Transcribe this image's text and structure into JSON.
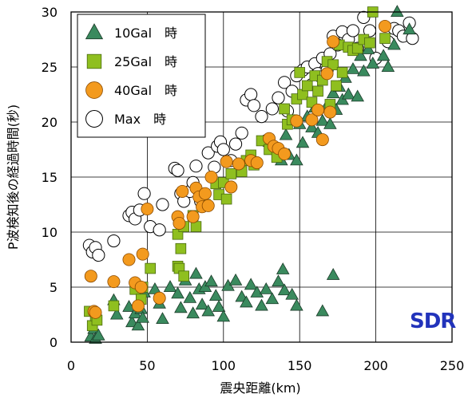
{
  "chart_data": {
    "type": "scatter",
    "xlabel": "震央距離(km)",
    "ylabel": "P波検知後の経過時間(秒)",
    "xlim": [
      0,
      250
    ],
    "ylim": [
      0,
      30
    ],
    "xticks": [
      0,
      50,
      100,
      150,
      200,
      250
    ],
    "yticks": [
      0,
      5,
      10,
      15,
      20,
      25,
      30
    ],
    "grid": true,
    "legend_position": "top-left",
    "watermark": "SDR",
    "series": [
      {
        "name": "10Gal　時",
        "marker": "triangle",
        "color": "#3a8a5e",
        "points": [
          [
            13,
            0.5
          ],
          [
            15,
            1.2
          ],
          [
            16,
            0.3
          ],
          [
            18,
            0.6
          ],
          [
            28,
            3.8
          ],
          [
            30,
            2.5
          ],
          [
            38,
            3.2
          ],
          [
            40,
            1.8
          ],
          [
            42,
            2.6
          ],
          [
            44,
            1.5
          ],
          [
            46,
            3.0
          ],
          [
            47,
            2.2
          ],
          [
            48,
            4.5
          ],
          [
            55,
            4.8
          ],
          [
            58,
            3.5
          ],
          [
            60,
            2.1
          ],
          [
            65,
            5.0
          ],
          [
            70,
            4.4
          ],
          [
            72,
            3.1
          ],
          [
            75,
            5.6
          ],
          [
            78,
            4.0
          ],
          [
            80,
            2.6
          ],
          [
            82,
            6.2
          ],
          [
            84,
            4.8
          ],
          [
            86,
            3.4
          ],
          [
            88,
            5.0
          ],
          [
            90,
            2.8
          ],
          [
            92,
            5.5
          ],
          [
            95,
            4.2
          ],
          [
            97,
            3.2
          ],
          [
            100,
            2.3
          ],
          [
            103,
            5.1
          ],
          [
            108,
            5.6
          ],
          [
            112,
            4.1
          ],
          [
            115,
            3.6
          ],
          [
            118,
            5.2
          ],
          [
            122,
            4.5
          ],
          [
            125,
            3.3
          ],
          [
            128,
            4.8
          ],
          [
            132,
            3.9
          ],
          [
            136,
            5.5
          ],
          [
            139,
            6.6
          ],
          [
            140,
            4.7
          ],
          [
            145,
            4.3
          ],
          [
            148,
            3.3
          ],
          [
            165,
            2.8
          ],
          [
            172,
            6.1
          ],
          [
            138,
            16.5
          ],
          [
            141,
            18.8
          ],
          [
            143,
            17.0
          ],
          [
            148,
            16.5
          ],
          [
            150,
            19.8
          ],
          [
            152,
            18.1
          ],
          [
            155,
            20.5
          ],
          [
            158,
            19.5
          ],
          [
            160,
            21.3
          ],
          [
            162,
            19.0
          ],
          [
            165,
            20.1
          ],
          [
            168,
            21.5
          ],
          [
            170,
            19.8
          ],
          [
            172,
            22.6
          ],
          [
            174,
            21.1
          ],
          [
            176,
            23.2
          ],
          [
            178,
            22.0
          ],
          [
            180,
            24.0
          ],
          [
            182,
            22.5
          ],
          [
            185,
            24.8
          ],
          [
            188,
            22.3
          ],
          [
            190,
            26.0
          ],
          [
            192,
            24.6
          ],
          [
            195,
            26.6
          ],
          [
            198,
            25.3
          ],
          [
            205,
            26.0
          ],
          [
            208,
            25.0
          ],
          [
            212,
            27.0
          ],
          [
            214,
            30.0
          ],
          [
            222,
            28.4
          ]
        ]
      },
      {
        "name": "25Gal　時",
        "marker": "square",
        "color": "#8fbf1f",
        "points": [
          [
            12,
            2.8
          ],
          [
            14,
            1.5
          ],
          [
            16,
            2.4
          ],
          [
            17,
            2.0
          ],
          [
            28,
            3.3
          ],
          [
            42,
            4.8
          ],
          [
            46,
            3.9
          ],
          [
            47,
            5.0
          ],
          [
            52,
            6.7
          ],
          [
            70,
            6.9
          ],
          [
            71,
            6.7
          ],
          [
            74,
            6.0
          ],
          [
            70,
            9.8
          ],
          [
            72,
            8.5
          ],
          [
            74,
            10.5
          ],
          [
            80,
            11.5
          ],
          [
            82,
            10.5
          ],
          [
            86,
            13.0
          ],
          [
            88,
            12.5
          ],
          [
            95,
            14.4
          ],
          [
            97,
            13.4
          ],
          [
            100,
            14.5
          ],
          [
            102,
            13.0
          ],
          [
            105,
            15.3
          ],
          [
            112,
            15.5
          ],
          [
            115,
            16.5
          ],
          [
            118,
            17.0
          ],
          [
            120,
            16.1
          ],
          [
            125,
            18.3
          ],
          [
            130,
            17.5
          ],
          [
            135,
            16.8
          ],
          [
            140,
            21.2
          ],
          [
            142,
            19.8
          ],
          [
            145,
            20.2
          ],
          [
            148,
            22.1
          ],
          [
            150,
            24.5
          ],
          [
            152,
            22.5
          ],
          [
            155,
            23.3
          ],
          [
            158,
            21.8
          ],
          [
            160,
            24.2
          ],
          [
            162,
            22.8
          ],
          [
            165,
            23.8
          ],
          [
            168,
            25.5
          ],
          [
            170,
            21.6
          ],
          [
            172,
            25.2
          ],
          [
            174,
            23.3
          ],
          [
            176,
            27.0
          ],
          [
            178,
            24.5
          ],
          [
            182,
            26.8
          ],
          [
            185,
            26.5
          ],
          [
            188,
            26.7
          ],
          [
            192,
            27.5
          ],
          [
            196,
            27.2
          ],
          [
            198,
            30.0
          ],
          [
            206,
            27.6
          ]
        ]
      },
      {
        "name": "40Gal　時",
        "marker": "circle",
        "color": "#f39a1e",
        "points": [
          [
            13,
            6.0
          ],
          [
            15,
            2.8
          ],
          [
            16,
            2.7
          ],
          [
            28,
            5.5
          ],
          [
            38,
            7.5
          ],
          [
            42,
            5.4
          ],
          [
            44,
            3.3
          ],
          [
            46,
            5.0
          ],
          [
            47,
            8.0
          ],
          [
            50,
            12.1
          ],
          [
            58,
            4.0
          ],
          [
            70,
            11.4
          ],
          [
            71,
            10.8
          ],
          [
            73,
            13.7
          ],
          [
            80,
            11.4
          ],
          [
            82,
            14.0
          ],
          [
            84,
            13.2
          ],
          [
            86,
            12.3
          ],
          [
            88,
            13.5
          ],
          [
            90,
            12.4
          ],
          [
            92,
            15.0
          ],
          [
            102,
            16.4
          ],
          [
            105,
            14.1
          ],
          [
            110,
            16.2
          ],
          [
            118,
            16.5
          ],
          [
            122,
            16.3
          ],
          [
            130,
            18.5
          ],
          [
            133,
            17.8
          ],
          [
            136,
            17.6
          ],
          [
            140,
            17.1
          ],
          [
            148,
            20.1
          ],
          [
            158,
            20.2
          ],
          [
            162,
            21.1
          ],
          [
            165,
            18.4
          ],
          [
            168,
            24.4
          ],
          [
            170,
            20.9
          ],
          [
            172,
            27.3
          ],
          [
            206,
            28.7
          ]
        ]
      },
      {
        "name": "Max　時",
        "marker": "open-circle",
        "color": "#000000",
        "points": [
          [
            12,
            8.8
          ],
          [
            14,
            8.2
          ],
          [
            16,
            8.6
          ],
          [
            18,
            7.9
          ],
          [
            28,
            9.2
          ],
          [
            38,
            11.5
          ],
          [
            40,
            11.8
          ],
          [
            42,
            11.2
          ],
          [
            45,
            12.0
          ],
          [
            48,
            13.5
          ],
          [
            52,
            10.5
          ],
          [
            58,
            10.2
          ],
          [
            60,
            12.5
          ],
          [
            68,
            15.8
          ],
          [
            70,
            15.6
          ],
          [
            72,
            13.5
          ],
          [
            74,
            12.8
          ],
          [
            78,
            13.7
          ],
          [
            80,
            14.5
          ],
          [
            82,
            16.0
          ],
          [
            85,
            12.8
          ],
          [
            90,
            17.2
          ],
          [
            94,
            15.9
          ],
          [
            96,
            17.8
          ],
          [
            98,
            18.2
          ],
          [
            100,
            17.5
          ],
          [
            105,
            16.5
          ],
          [
            108,
            18.0
          ],
          [
            112,
            19.0
          ],
          [
            115,
            22.0
          ],
          [
            118,
            22.5
          ],
          [
            120,
            21.5
          ],
          [
            125,
            20.5
          ],
          [
            128,
            18.3
          ],
          [
            132,
            21.2
          ],
          [
            136,
            22.2
          ],
          [
            140,
            23.6
          ],
          [
            142,
            21.0
          ],
          [
            145,
            22.8
          ],
          [
            148,
            24.2
          ],
          [
            152,
            24.7
          ],
          [
            155,
            25.0
          ],
          [
            158,
            23.4
          ],
          [
            160,
            25.3
          ],
          [
            162,
            24.4
          ],
          [
            165,
            25.8
          ],
          [
            168,
            24.7
          ],
          [
            170,
            26.2
          ],
          [
            172,
            27.8
          ],
          [
            175,
            27.0
          ],
          [
            178,
            28.2
          ],
          [
            182,
            27.5
          ],
          [
            185,
            28.3
          ],
          [
            188,
            26.7
          ],
          [
            192,
            29.5
          ],
          [
            196,
            28.3
          ],
          [
            200,
            25.8
          ],
          [
            208,
            27.3
          ],
          [
            212,
            28.5
          ],
          [
            215,
            28.3
          ],
          [
            218,
            27.8
          ],
          [
            222,
            29.0
          ],
          [
            224,
            27.6
          ]
        ]
      }
    ]
  }
}
